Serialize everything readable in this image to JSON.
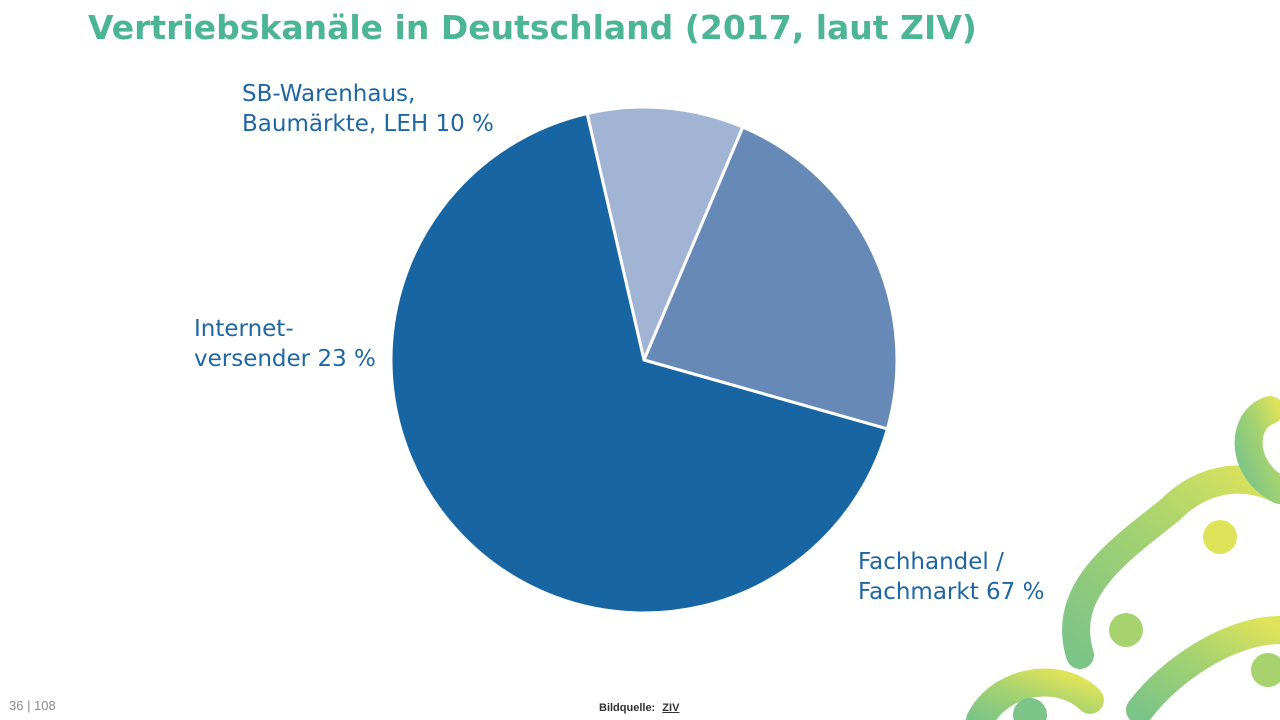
{
  "title": "Vertriebskanäle in Deutschland (2017, laut ZIV)",
  "chart_data": {
    "type": "pie",
    "title": "Vertriebskanäle in Deutschland (2017, laut ZIV)",
    "slices": [
      {
        "label_lines": [
          "SB-Warenhaus,",
          "Baumärkte, LEH 10 %"
        ],
        "value": 10,
        "color": "#a1b4d4"
      },
      {
        "label_lines": [
          "Internet-",
          "versender 23 %"
        ],
        "value": 23,
        "color": "#6689b8"
      },
      {
        "label_lines": [
          "Fachhandel /",
          "Fachmarkt 67 %"
        ],
        "value": 67,
        "color": "#1766a3"
      }
    ]
  },
  "footer": {
    "page_number": "36 | 108",
    "source_label": "Bildquelle:",
    "source_link": "ZIV"
  },
  "colors": {
    "title": "#4cb596",
    "label": "#1f66a4",
    "deco_green": "#7cc487",
    "deco_yellow": "#dfe35a"
  },
  "decoration": {
    "icon": "bike-chain-icon"
  }
}
